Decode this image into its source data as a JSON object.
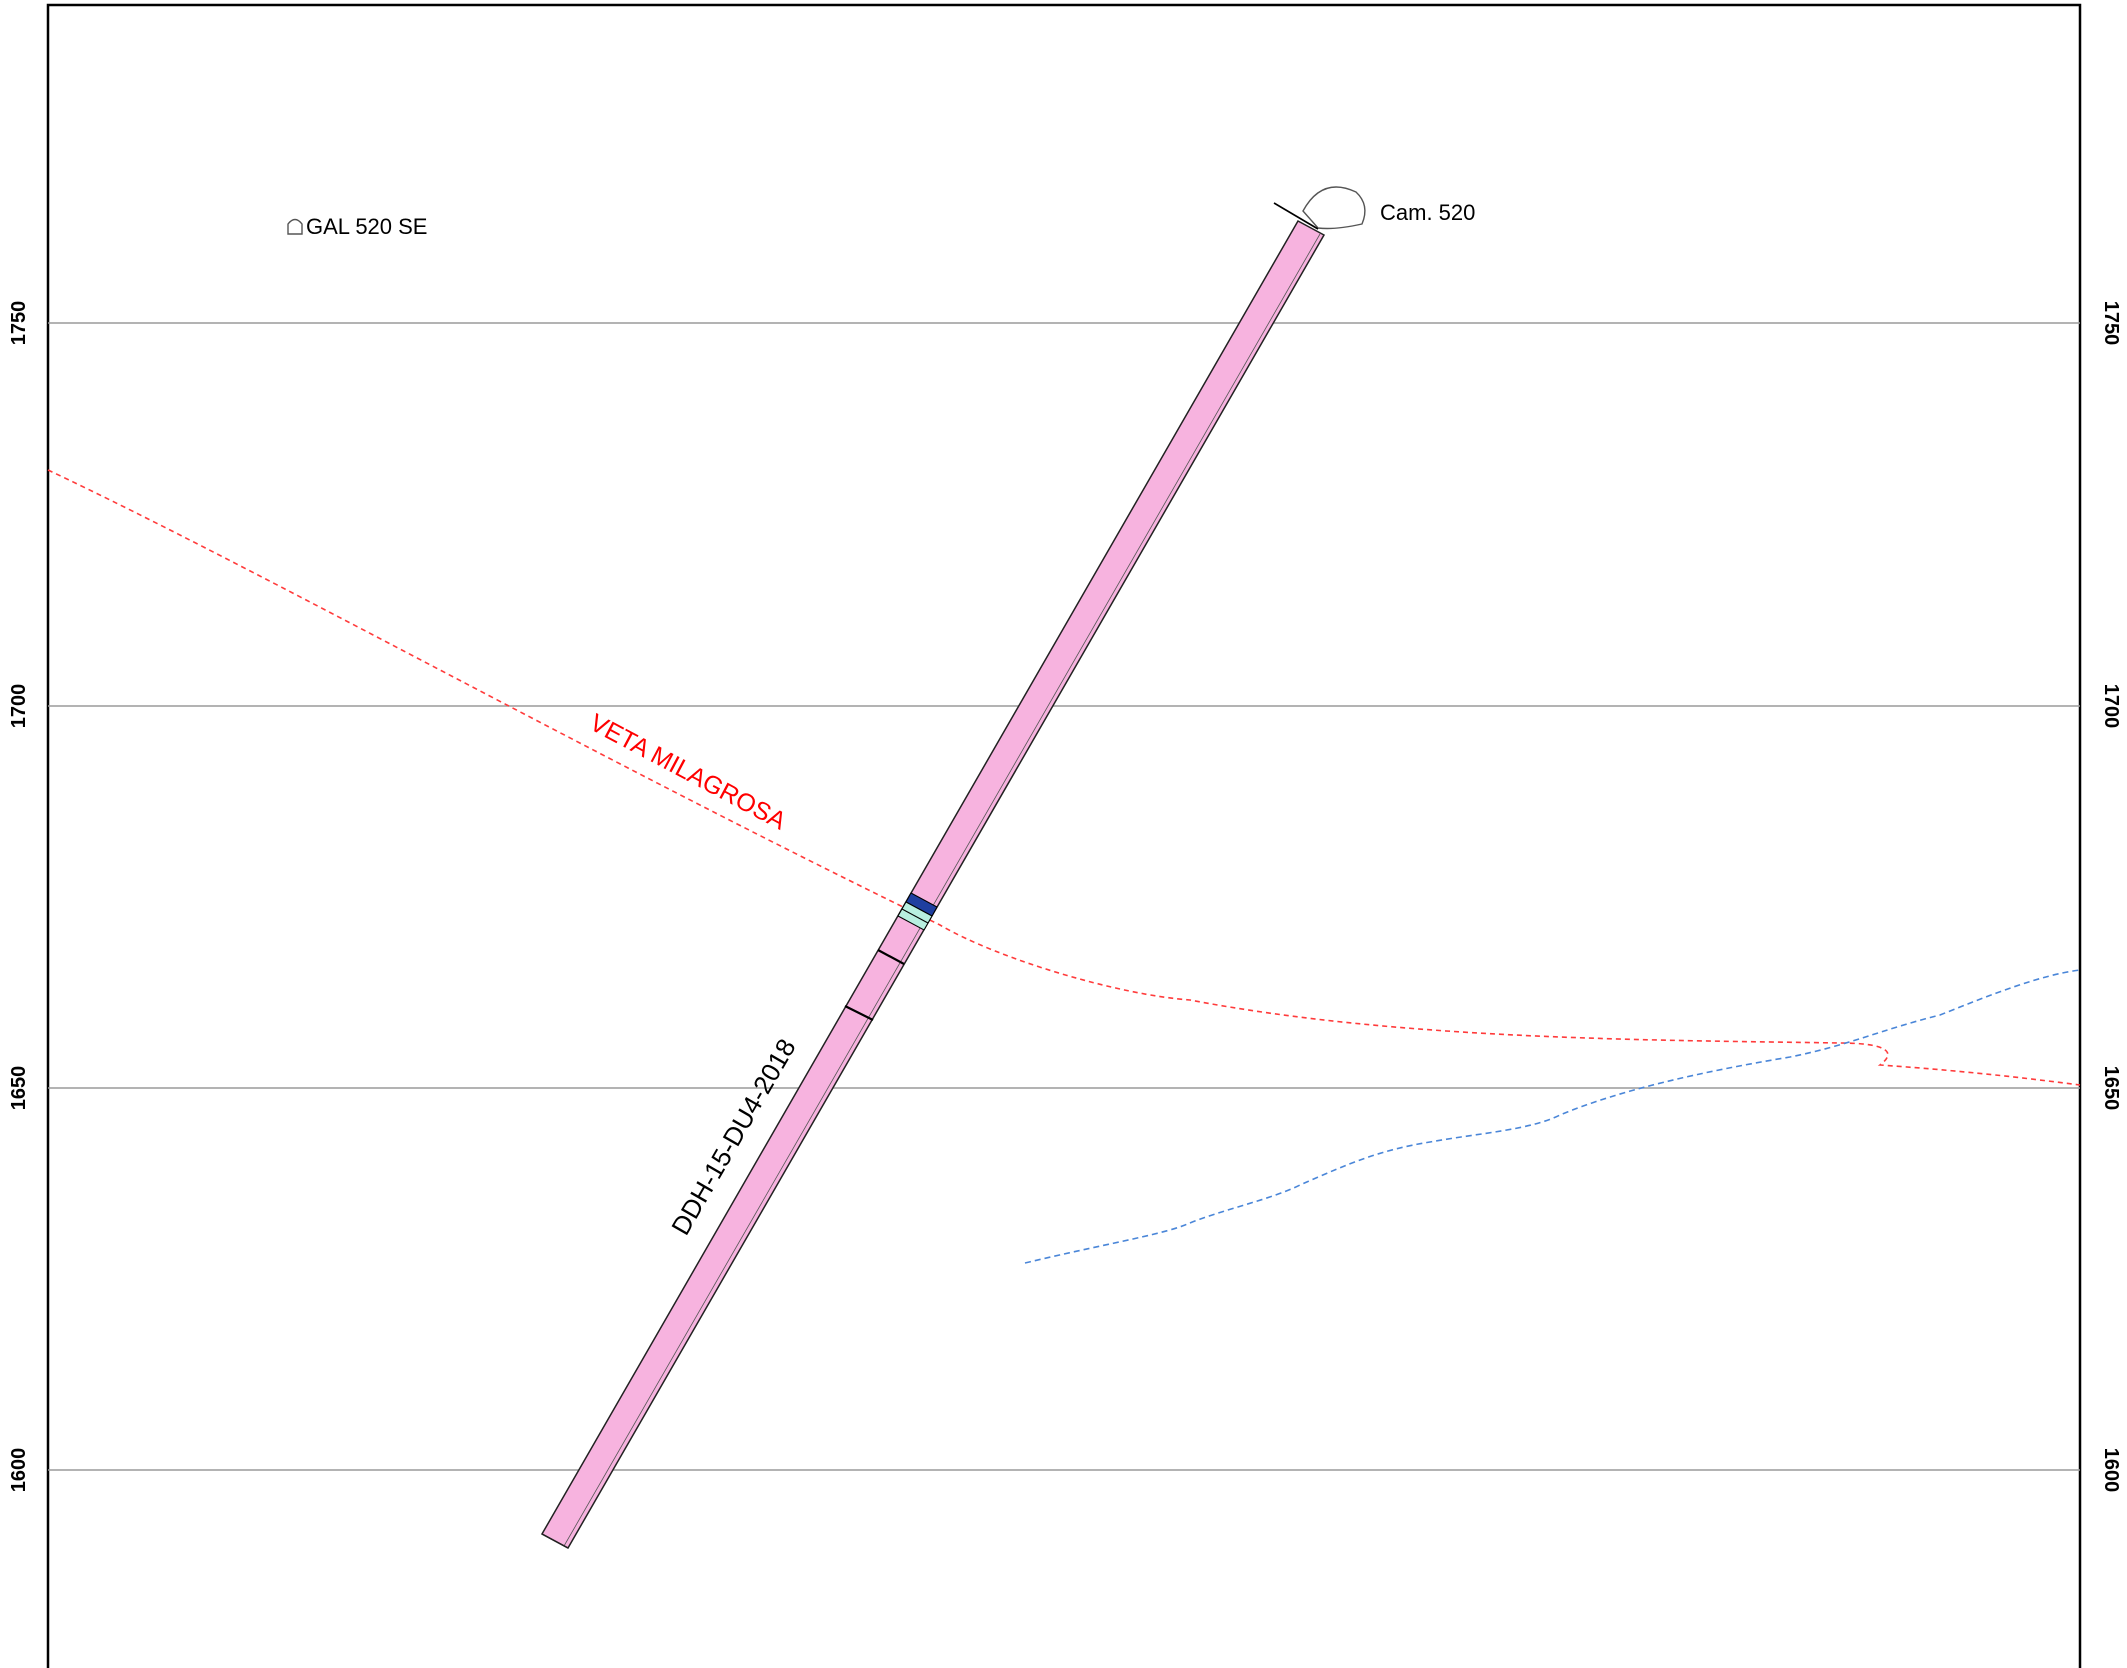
{
  "section": {
    "elevation_ticks": [
      "1750",
      "1700",
      "1650",
      "1600"
    ],
    "gridline_color": "#9a9a9a",
    "frame_color": "#000000"
  },
  "labels": {
    "gallery": "GAL 520 SE",
    "camera": "Cam. 520",
    "vein": "VETA MILAGROSA",
    "drillhole": "DDH-15-DU4-2018"
  },
  "colors": {
    "drillhole_fill": "#f7b3df",
    "vein_line": "#ff3b3b",
    "vein_text": "#ff0000",
    "blue_line": "#4a86d8",
    "interval_dark_blue": "#1f3fa0",
    "interval_light_green": "#b8efe0"
  },
  "icons": {
    "gallery": "tunnel-profile-icon",
    "camera": "chamber-profile-icon"
  }
}
